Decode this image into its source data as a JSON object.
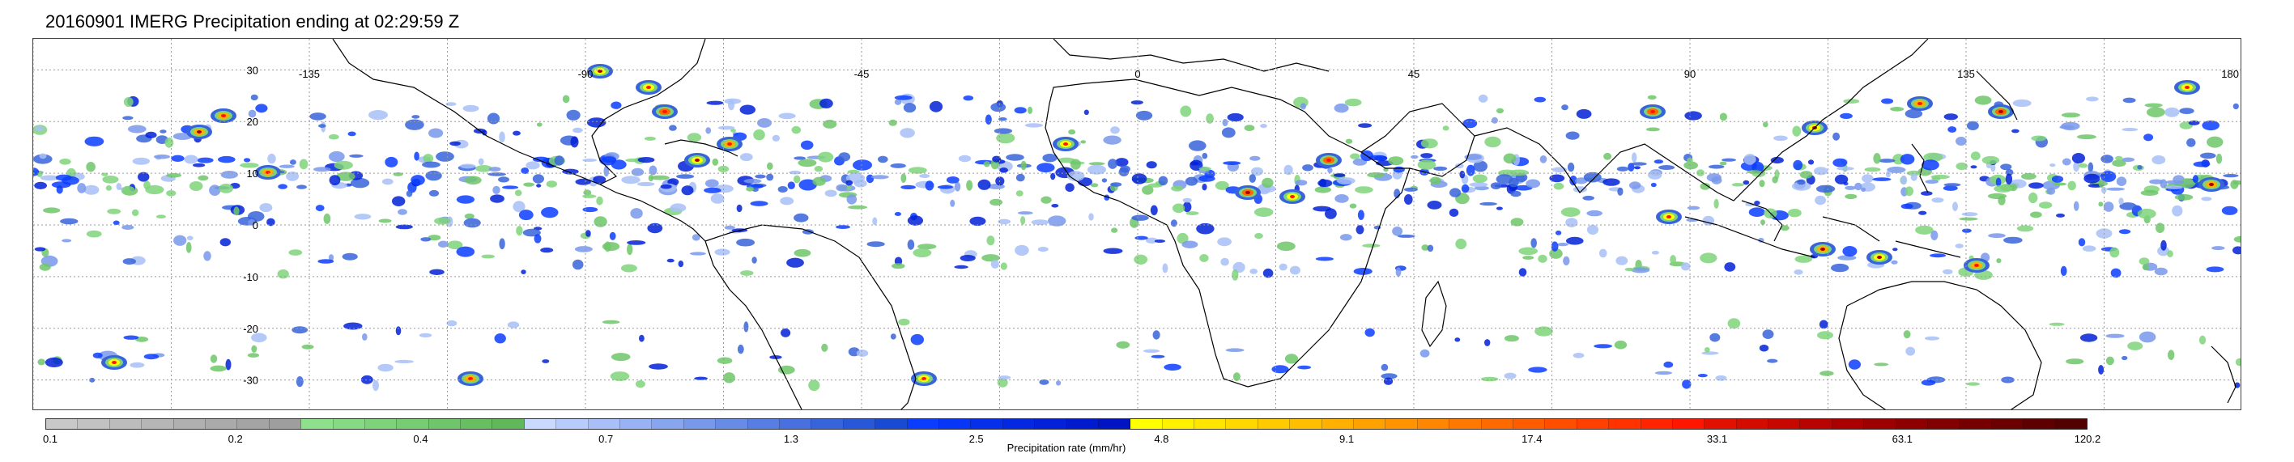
{
  "title": "20160901 IMERG Precipitation ending at 02:29:59 Z",
  "map": {
    "longitude_labels": [
      "-135",
      "-90",
      "-45",
      "0",
      "45",
      "90",
      "135",
      "180"
    ],
    "latitude_labels": [
      "30",
      "20",
      "10",
      "0",
      "-10",
      "-20",
      "-30"
    ],
    "gridline_color": "#9a9a9a"
  },
  "colorbar": {
    "label": "Precipitation rate (mm/hr)",
    "tick_labels": [
      "0.1",
      "0.2",
      "0.4",
      "0.7",
      "1.3",
      "2.5",
      "4.8",
      "9.1",
      "17.4",
      "33.1",
      "63.1",
      "120.2"
    ],
    "colors": [
      "#c8c8c8",
      "#c2c2c2",
      "#bcbcbc",
      "#b6b6b6",
      "#b0b0b0",
      "#aaaaaa",
      "#a4a4a4",
      "#9e9e9e",
      "#8fe08c",
      "#86da83",
      "#7ed37a",
      "#76cd72",
      "#6fc66a",
      "#68bf62",
      "#61b85b",
      "#c9d9ff",
      "#b8ccfb",
      "#a8bff7",
      "#98b2f3",
      "#88a5ef",
      "#7898eb",
      "#688be7",
      "#587ee3",
      "#4871df",
      "#3864db",
      "#2857d7",
      "#184ad3",
      "#0a3dff",
      "#0836f6",
      "#062fec",
      "#0428e2",
      "#0221d8",
      "#001ace",
      "#0014c4",
      "#ffff00",
      "#fff200",
      "#ffe500",
      "#ffd800",
      "#ffcb00",
      "#ffbe00",
      "#ffb000",
      "#ffa200",
      "#ff9400",
      "#ff8600",
      "#ff7800",
      "#ff6a00",
      "#ff5c00",
      "#ff4e00",
      "#ff4000",
      "#ff3200",
      "#ff2400",
      "#ff1600",
      "#e21000",
      "#d40c00",
      "#c60800",
      "#b80400",
      "#aa0000",
      "#9c0000",
      "#8e0000",
      "#820000",
      "#760000",
      "#6a0000",
      "#5e0000",
      "#520000"
    ]
  }
}
